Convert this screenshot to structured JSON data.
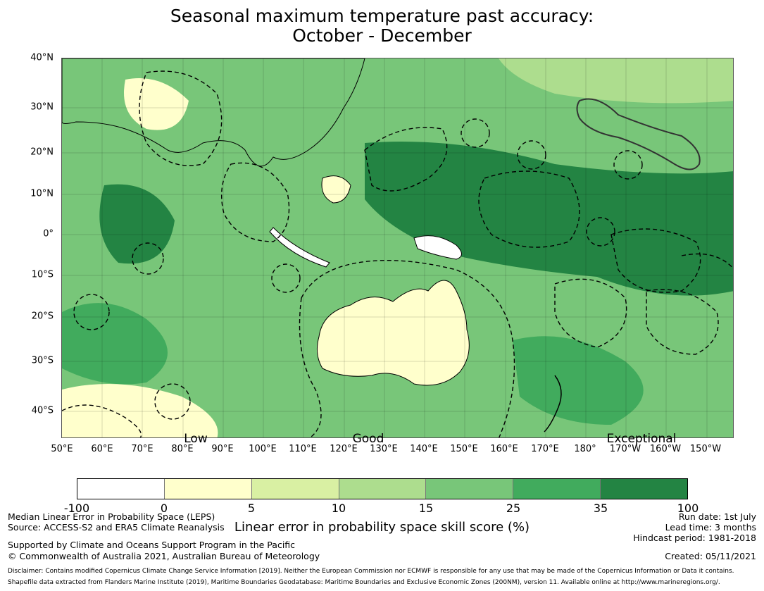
{
  "title_line1": "Seasonal maximum temperature past accuracy:",
  "title_line2": "October - December",
  "lat_labels": [
    "40°N",
    "30°N",
    "20°N",
    "10°N",
    "0°",
    "10°S",
    "20°S",
    "30°S",
    "40°S"
  ],
  "lon_labels": [
    "50°E",
    "60°E",
    "70°E",
    "80°E",
    "90°E",
    "100°E",
    "110°E",
    "120°E",
    "130°E",
    "140°E",
    "150°E",
    "160°E",
    "170°E",
    "180°",
    "170°W",
    "160°W",
    "150°W"
  ],
  "skill_categories": [
    "Low",
    "Good",
    "Exceptional"
  ],
  "colorbar": {
    "label": "Linear error in probability space skill score (%)",
    "ticks": [
      "-100",
      "0",
      "5",
      "10",
      "15",
      "25",
      "35",
      "100"
    ],
    "colors": [
      "#ffffff",
      "#ffffcc",
      "#d9f0a3",
      "#addd8e",
      "#78c679",
      "#41ab5d",
      "#238443"
    ]
  },
  "footer_left": {
    "line1": "Median Linear Error in Probability Space (LEPS)",
    "line2": "Source: ACCESS-S2 and ERA5 Climate Reanalysis",
    "line3": "Supported by Climate and Oceans Support Program in the Pacific",
    "line4": "© Commonwealth of Australia 2021, Australian Bureau of Meteorology"
  },
  "footer_right": {
    "run_date": "Run date: 1st July",
    "lead_time": "Lead time: 3 months",
    "hindcast": "Hindcast period: 1981-2018",
    "created": "Created: 05/11/2021"
  },
  "disclaimer1": "Disclaimer: Contains modified Copernicus Climate Change Service Information [2019]. Neither the European Commission nor ECMWF is responsible for any use that may be made of the Copernicus Information or Data it contains.",
  "disclaimer2": "Shapefile data extracted from Flanders Marine Institute (2019), Maritime Boundaries Geodatabase: Maritime Boundaries and Exclusive Economic Zones (200NM), version 11. Available online at http://www.marineregions.org/."
}
